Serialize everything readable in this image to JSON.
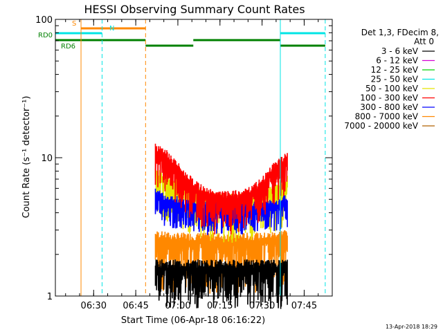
{
  "chart_data": {
    "type": "line",
    "title": "HESSI Observing Summary Count Rates",
    "xlabel": "Start Time (06-Apr-18 06:16:22)",
    "ylabel": "Count Rate (s⁻¹ detector⁻¹)",
    "xlim": [
      "06:16:22",
      "07:55:00"
    ],
    "ylim": [
      1,
      100
    ],
    "yscale": "log",
    "x_ticks": [
      "06:30",
      "06:45",
      "07:00",
      "07:15",
      "07:30",
      "07:45"
    ],
    "y_ticks": [
      "1",
      "10",
      "100"
    ],
    "footer_date": "13-Apr-2018 18:29",
    "legend": {
      "placement": "right",
      "header": [
        "Det 1,3, FDecim 8,",
        "Att 0"
      ],
      "entries": [
        {
          "name": "3 - 6 keV",
          "color": "#000000"
        },
        {
          "name": "6 - 12 keV",
          "color": "#d400d4"
        },
        {
          "name": "12 - 25 keV",
          "color": "#00d400"
        },
        {
          "name": "25 - 50 keV",
          "color": "#00e5e5"
        },
        {
          "name": "50 - 100 keV",
          "color": "#e5e500"
        },
        {
          "name": "100 - 300 keV",
          "color": "#ff0000"
        },
        {
          "name": "300 - 800 keV",
          "color": "#0000ff"
        },
        {
          "name": "800 - 7000 keV",
          "color": "#ff8800"
        },
        {
          "name": "7000 - 20000 keV",
          "color": "#b06000"
        }
      ]
    },
    "flag_bars": [
      {
        "name": "S",
        "color": "#ff8800",
        "segments": [
          [
            "06:25:30",
            "06:48:30"
          ]
        ]
      },
      {
        "name": "N",
        "color": "#00e5e5",
        "segments": [
          [
            "06:16:22",
            "06:33:00"
          ],
          [
            "07:36:30",
            "07:52:30"
          ]
        ]
      },
      {
        "name": "RD0",
        "color": "#008000",
        "segments": [
          [
            "06:16:22",
            "06:48:30"
          ],
          [
            "07:05:30",
            "07:36:30"
          ]
        ]
      },
      {
        "name": "RD6",
        "color": "#008000",
        "segments": [
          [
            "06:48:30",
            "07:05:30"
          ],
          [
            "07:36:30",
            "07:52:30"
          ]
        ]
      }
    ],
    "vertical_markers": [
      {
        "time": "06:16:22",
        "color": "#00e5e5",
        "style": "solid"
      },
      {
        "time": "06:25:30",
        "color": "#ff8800",
        "style": "solid"
      },
      {
        "time": "06:33:00",
        "color": "#00e5e5",
        "style": "dashed"
      },
      {
        "time": "06:48:30",
        "color": "#ff8800",
        "style": "dashed"
      },
      {
        "time": "07:36:30",
        "color": "#00e5e5",
        "style": "solid"
      },
      {
        "time": "07:52:30",
        "color": "#00e5e5",
        "style": "dashed"
      }
    ],
    "data_window": [
      "06:52:00",
      "07:39:00"
    ],
    "series": [
      {
        "name": "100 - 300 keV",
        "color": "#ff0000",
        "x": [
          "06:52",
          "06:55",
          "06:58",
          "07:02",
          "07:06",
          "07:10",
          "07:14",
          "07:18",
          "07:22",
          "07:26",
          "07:30",
          "07:33",
          "07:36",
          "07:39"
        ],
        "y": [
          11.2,
          10.5,
          9.0,
          7.2,
          6.0,
          5.3,
          5.0,
          5.0,
          5.1,
          5.4,
          6.3,
          7.5,
          8.8,
          9.5
        ]
      },
      {
        "name": "50 - 100 keV",
        "color": "#e5e500",
        "x": [
          "06:52",
          "06:58",
          "07:06",
          "07:14",
          "07:22",
          "07:30",
          "07:36",
          "07:39"
        ],
        "y": [
          7.5,
          6.5,
          5.3,
          4.8,
          4.8,
          5.2,
          6.0,
          6.5
        ]
      },
      {
        "name": "300 - 800 keV",
        "color": "#0000ff",
        "x": [
          "06:52",
          "06:58",
          "07:06",
          "07:14",
          "07:22",
          "07:30",
          "07:36",
          "07:39"
        ],
        "y": [
          5.2,
          4.7,
          4.3,
          4.2,
          4.2,
          4.2,
          4.5,
          4.8
        ]
      },
      {
        "name": "800 - 7000 keV",
        "color": "#ff8800",
        "x": [
          "06:52",
          "06:58",
          "07:06",
          "07:14",
          "07:22",
          "07:30",
          "07:36",
          "07:39"
        ],
        "y": [
          2.6,
          2.5,
          2.5,
          2.5,
          2.5,
          2.5,
          2.6,
          2.7
        ]
      },
      {
        "name": "3 - 6 keV",
        "color": "#000000",
        "x": [
          "06:52",
          "06:58",
          "07:06",
          "07:14",
          "07:22",
          "07:30",
          "07:36",
          "07:39"
        ],
        "y": [
          1.6,
          1.6,
          1.6,
          1.6,
          1.6,
          1.6,
          1.6,
          1.6
        ]
      }
    ]
  }
}
